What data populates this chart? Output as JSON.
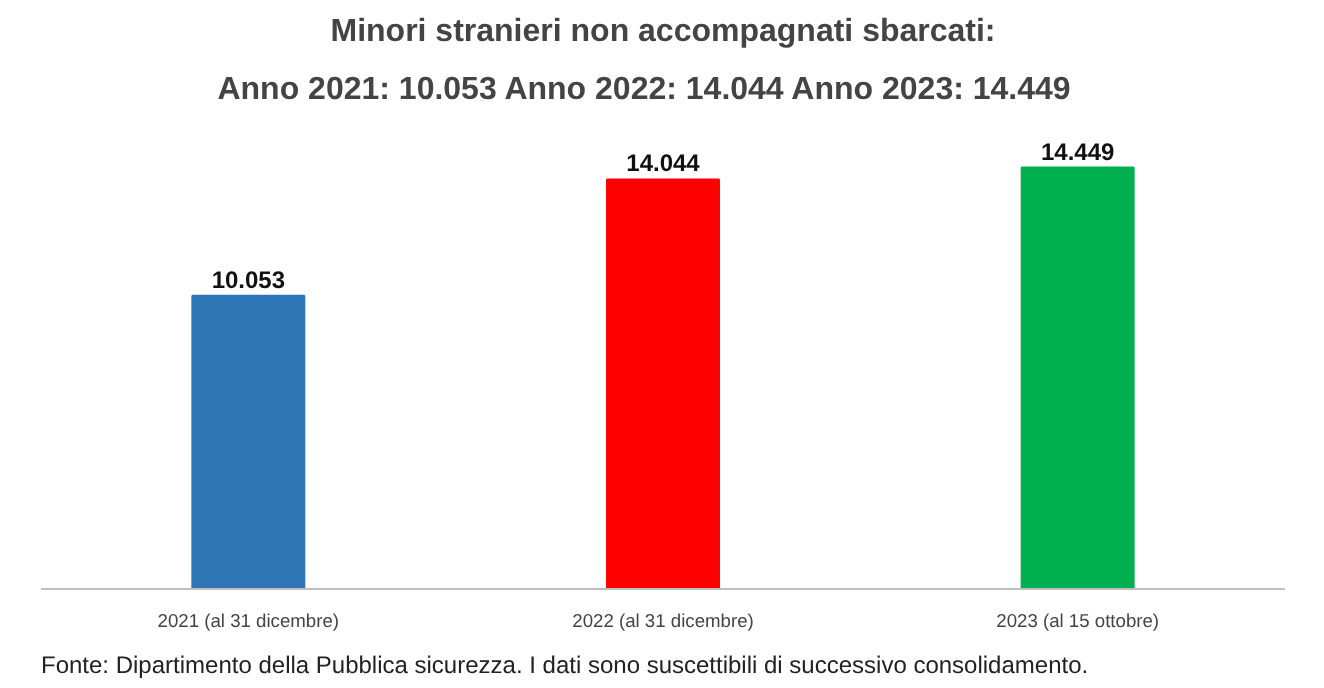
{
  "chart_data": {
    "type": "bar",
    "title": "Minori stranieri non accompagnati sbarcati:",
    "subtitle": "Anno 2021: 10.053   Anno 2022: 14.044   Anno 2023: 14.449",
    "categories": [
      "2021 (al 31 dicembre)",
      "2022 (al 31 dicembre)",
      "2023 (al 15 ottobre)"
    ],
    "values": [
      10053,
      14044,
      14449
    ],
    "value_labels": [
      "10.053",
      "14.044",
      "14.449"
    ],
    "colors": [
      "#2e75b6",
      "#ff0000",
      "#00b050"
    ],
    "grid": false,
    "annotations": [
      "Fonte: Dipartimento della Pubblica sicurezza. I dati sono suscettibili di successivo consolidamento."
    ]
  }
}
